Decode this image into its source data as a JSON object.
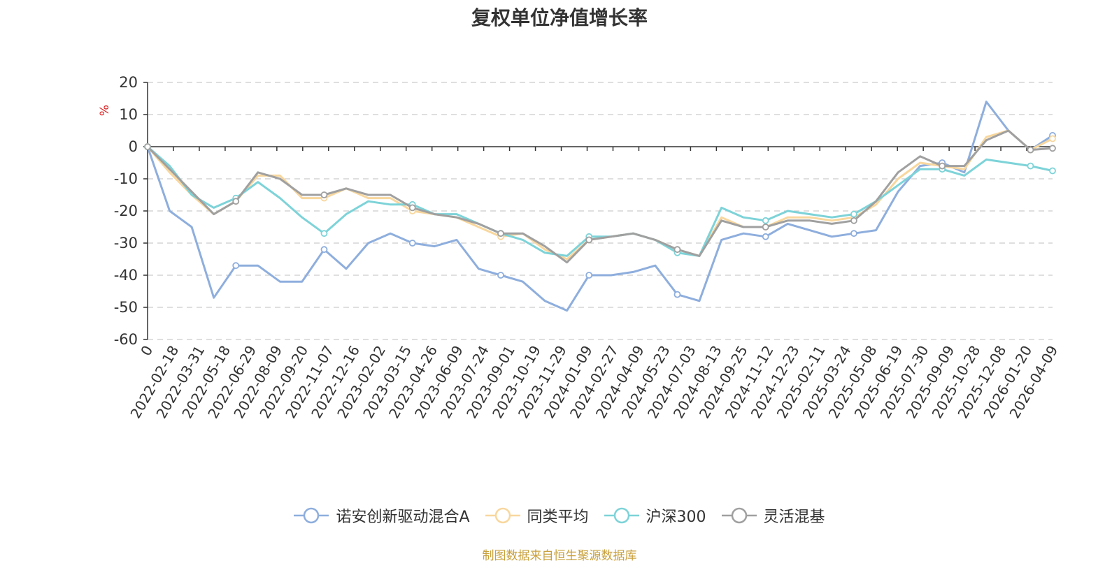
{
  "title": "复权单位净值增长率",
  "source_note": "制图数据来自恒生聚源数据库",
  "chart_data": {
    "type": "line",
    "ylabel": "%",
    "xlabel": "",
    "ylim": [
      -60,
      20
    ],
    "y_ticks": [
      20,
      10,
      0,
      -10,
      -20,
      -30,
      -40,
      -50,
      -60
    ],
    "x_tick_labels": [
      "0",
      "2022-02-18",
      "2022-03-31",
      "2022-05-18",
      "2022-06-29",
      "2022-08-09",
      "2022-09-20",
      "2022-11-07",
      "2022-12-16",
      "2023-02-02",
      "2023-03-15",
      "2023-04-26",
      "2023-06-09",
      "2023-07-24",
      "2023-09-01",
      "2023-10-19",
      "2023-11-29",
      "2024-01-09",
      "2024-02-27",
      "2024-04-09",
      "2024-05-23",
      "2024-07-03",
      "2024-08-13",
      "2024-09-25",
      "2024-11-12",
      "2024-12-23",
      "2025-02-11",
      "2025-03-24",
      "2025-05-08",
      "2025-06-19",
      "2025-07-30",
      "2025-09-09",
      "2025-10-28",
      "2025-12-08",
      "2026-01-20",
      "2026-04-09"
    ],
    "grid": "horizontal dashed",
    "legend_position": "bottom",
    "series": [
      {
        "name": "诺安创新驱动混合A",
        "color": "#8eaedd",
        "values": [
          0,
          -20,
          -25,
          -47,
          -37,
          -37,
          -42,
          -42,
          -32,
          -38,
          -30,
          -27,
          -30,
          -31,
          -29,
          -38,
          -40,
          -42,
          -48,
          -51,
          -40,
          -40,
          -39,
          -37,
          -46,
          -48,
          -29,
          -27,
          -28,
          -24,
          -26,
          -28,
          -27,
          -26,
          -14,
          -6,
          -5,
          -8,
          14,
          5,
          -1,
          3.5
        ]
      },
      {
        "name": "同类平均",
        "color": "#f8d79e",
        "values": [
          0,
          -8,
          -15,
          -21,
          -17,
          -9,
          -9,
          -16,
          -16,
          -13,
          -16,
          -16,
          -20,
          -21,
          -22,
          -25,
          -28,
          -27,
          -32,
          -35,
          -29,
          -28,
          -27,
          -29,
          -32,
          -34,
          -22,
          -25,
          -25,
          -22,
          -22,
          -23,
          -22,
          -18,
          -10,
          -5,
          -6,
          -7,
          3,
          5,
          -1,
          2.5
        ]
      },
      {
        "name": "沪深300",
        "color": "#7dd3d8",
        "values": [
          0,
          -6,
          -15,
          -19,
          -16,
          -11,
          -16,
          -22,
          -27,
          -21,
          -17,
          -18,
          -18,
          -21,
          -21,
          -24,
          -27,
          -29,
          -33,
          -34,
          -28,
          -28,
          -27,
          -29,
          -33,
          -34,
          -19,
          -22,
          -23,
          -20,
          -21,
          -22,
          -21,
          -17,
          -12,
          -7,
          -7,
          -9,
          -4,
          -5,
          -6,
          -7.5
        ]
      },
      {
        "name": "灵活混基",
        "color": "#a0a0a0",
        "values": [
          0,
          -7,
          -14,
          -21,
          -17,
          -8,
          -10,
          -15,
          -15,
          -13,
          -15,
          -15,
          -19,
          -21,
          -22,
          -24,
          -27,
          -27,
          -31,
          -36,
          -29,
          -28,
          -27,
          -29,
          -32,
          -34,
          -23,
          -25,
          -25,
          -23,
          -23,
          -24,
          -23,
          -17,
          -8,
          -3,
          -6,
          -6,
          2,
          5,
          -1,
          -0.5
        ]
      }
    ]
  }
}
